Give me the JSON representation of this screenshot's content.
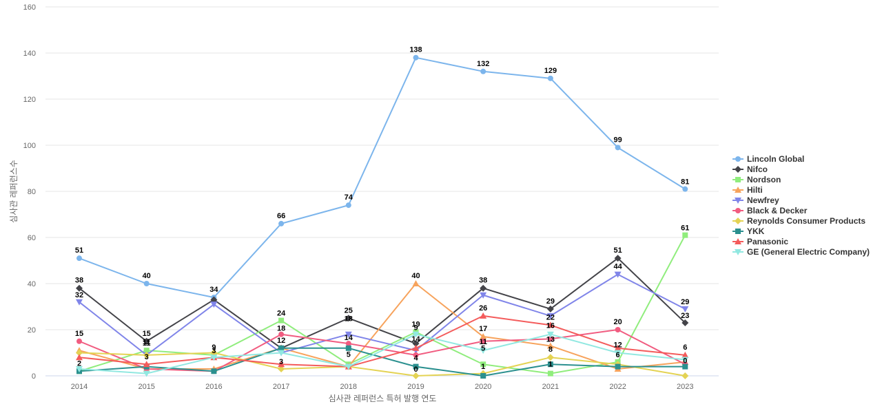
{
  "chart_data": {
    "type": "line",
    "title": "",
    "xlabel": "심사관 레퍼런스 특허 발행 연도",
    "ylabel": "심사관 레퍼런스수",
    "ylim": [
      0,
      160
    ],
    "yticks": [
      0,
      20,
      40,
      60,
      80,
      100,
      120,
      140,
      160
    ],
    "categories": [
      "2014",
      "2015",
      "2016",
      "2017",
      "2018",
      "2019",
      "2020",
      "2021",
      "2022",
      "2023"
    ],
    "legend_position": "right",
    "series": [
      {
        "name": "Lincoln Global",
        "color": "#7cb5ec",
        "marker": "circle",
        "values": [
          51,
          40,
          34,
          66,
          74,
          138,
          132,
          129,
          99,
          81
        ]
      },
      {
        "name": "Nifco",
        "color": "#434348",
        "marker": "diamond",
        "values": [
          38,
          15,
          33,
          12,
          25,
          14,
          38,
          29,
          51,
          23
        ]
      },
      {
        "name": "Nordson",
        "color": "#90ed7d",
        "marker": "square",
        "values": [
          2,
          11,
          9,
          24,
          5,
          19,
          5,
          1,
          6,
          61
        ]
      },
      {
        "name": "Hilti",
        "color": "#f7a35c",
        "marker": "triangle",
        "values": [
          11,
          3,
          3,
          12,
          4,
          40,
          17,
          13,
          3,
          6
        ]
      },
      {
        "name": "Newfrey",
        "color": "#8085e9",
        "marker": "triangle-down",
        "values": [
          32,
          9,
          31,
          10,
          18,
          11,
          35,
          26,
          44,
          29
        ]
      },
      {
        "name": "Black & Decker",
        "color": "#f15c80",
        "marker": "circle",
        "values": [
          15,
          3,
          2,
          18,
          14,
          9,
          15,
          16,
          20,
          5
        ]
      },
      {
        "name": "Reynolds Consumer Products",
        "color": "#e4d354",
        "marker": "diamond",
        "values": [
          10,
          9,
          10,
          3,
          4,
          0,
          1,
          8,
          5,
          0
        ]
      },
      {
        "name": "YKK",
        "color": "#2b908f",
        "marker": "square",
        "values": [
          2,
          4,
          2,
          12,
          12,
          4,
          0,
          5,
          4,
          4
        ]
      },
      {
        "name": "Panasonic",
        "color": "#f45b5b",
        "marker": "triangle",
        "values": [
          8,
          5,
          8,
          5,
          4,
          12,
          26,
          22,
          12,
          9
        ]
      },
      {
        "name": "GE (General Electric Company)",
        "color": "#91e8e1",
        "marker": "triangle-down",
        "values": [
          3,
          1,
          8,
          10,
          4,
          18,
          11,
          18,
          10,
          7
        ]
      }
    ],
    "data_labels": [
      {
        "text": "51"
      },
      {
        "text": "40"
      },
      {
        "text": "34"
      },
      {
        "text": "66"
      },
      {
        "text": "74"
      },
      {
        "text": "138"
      },
      {
        "text": "132"
      },
      {
        "text": "129"
      },
      {
        "text": "99"
      },
      {
        "text": "81"
      },
      {
        "text": "38"
      },
      {
        "text": "15"
      },
      {
        "text": "25"
      },
      {
        "text": "38"
      },
      {
        "text": "29"
      },
      {
        "text": "51"
      },
      {
        "text": "23"
      },
      {
        "text": "32"
      },
      {
        "text": "44"
      },
      {
        "text": "29"
      },
      {
        "text": "61"
      },
      {
        "text": "40"
      },
      {
        "text": "24"
      },
      {
        "text": "19"
      },
      {
        "text": "26"
      },
      {
        "text": "22"
      },
      {
        "text": "20"
      },
      {
        "text": "18"
      },
      {
        "text": "18"
      },
      {
        "text": "16"
      },
      {
        "text": "17"
      },
      {
        "text": "14"
      },
      {
        "text": "13"
      },
      {
        "text": "12"
      },
      {
        "text": "15"
      },
      {
        "text": "11"
      },
      {
        "text": "11"
      },
      {
        "text": "12"
      },
      {
        "text": "14"
      },
      {
        "text": "11"
      },
      {
        "text": "9"
      },
      {
        "text": "9"
      },
      {
        "text": "8"
      },
      {
        "text": "6"
      },
      {
        "text": "6"
      },
      {
        "text": "5"
      },
      {
        "text": "5"
      },
      {
        "text": "4"
      },
      {
        "text": "3"
      },
      {
        "text": "3"
      },
      {
        "text": "3"
      },
      {
        "text": "2"
      },
      {
        "text": "1"
      },
      {
        "text": "1"
      },
      {
        "text": "0"
      },
      {
        "text": "0"
      }
    ]
  }
}
